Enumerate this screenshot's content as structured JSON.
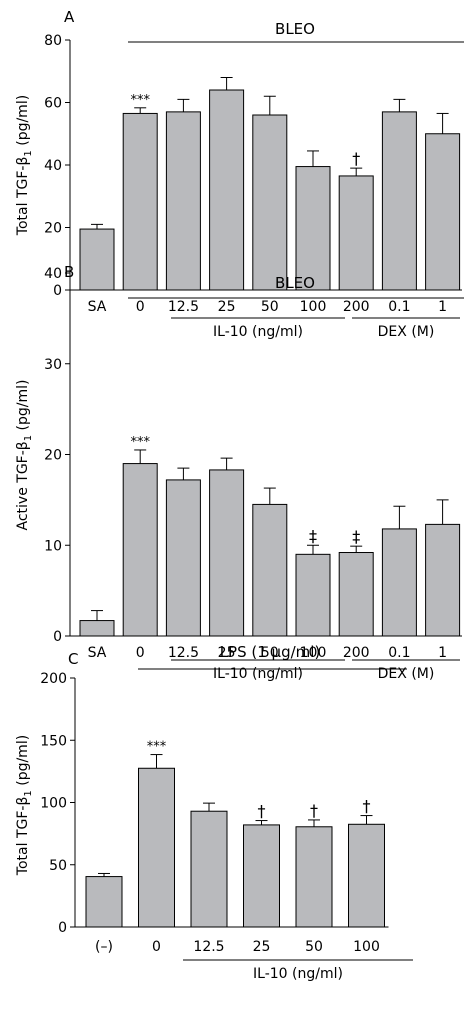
{
  "colors": {
    "bar": "#b9babd",
    "stroke": "#000000",
    "background": "#ffffff"
  },
  "chart_data": [
    {
      "type": "bar",
      "panel_label": "A",
      "ylabel": "Total TGF-β1 (pg/ml)",
      "ylim": [
        0,
        80
      ],
      "yticks": [
        "0",
        "20",
        "40",
        "60",
        "80"
      ],
      "treatment": "BLEO",
      "categories": [
        "SA",
        "0",
        "12.5",
        "25",
        "50",
        "100",
        "200",
        "0.1",
        "1"
      ],
      "values": [
        19.5,
        56.5,
        57,
        64,
        56,
        39.5,
        36.5,
        57,
        50
      ],
      "errors": [
        1.5,
        1.8,
        4,
        4,
        6,
        5,
        2.5,
        4,
        6.5
      ],
      "annotations": [
        "",
        "***",
        "",
        "",
        "",
        "",
        "†",
        "",
        ""
      ],
      "groups": [
        {
          "label": "IL-10 (ng/ml)",
          "from": 2,
          "to": 6
        },
        {
          "label": "DEX (M)",
          "from": 7,
          "to": 8
        }
      ]
    },
    {
      "type": "bar",
      "panel_label": "B",
      "ylabel": "Active TGF-β1 (pg/ml)",
      "ylim": [
        0,
        40
      ],
      "yticks": [
        "0",
        "10",
        "20",
        "30",
        "40"
      ],
      "treatment": "BLEO",
      "categories": [
        "SA",
        "0",
        "12.5",
        "25",
        "50",
        "100",
        "200",
        "0.1",
        "1"
      ],
      "values": [
        1.7,
        19,
        17.2,
        18.3,
        14.5,
        9,
        9.2,
        11.8,
        12.3
      ],
      "errors": [
        1.1,
        1.5,
        1.3,
        1.3,
        1.8,
        1,
        0.7,
        2.5,
        2.7
      ],
      "annotations": [
        "",
        "***",
        "",
        "",
        "",
        "‡",
        "‡",
        "",
        ""
      ],
      "groups": [
        {
          "label": "IL-10 (ng/ml)",
          "from": 2,
          "to": 6
        },
        {
          "label": "DEX (M)",
          "from": 7,
          "to": 8
        }
      ]
    },
    {
      "type": "bar",
      "panel_label": "C",
      "ylabel": "Total TGF-β1 (pg/ml)",
      "ylim": [
        0,
        200
      ],
      "yticks": [
        "0",
        "50",
        "100",
        "150",
        "200"
      ],
      "treatment": "LPS (1 µg/ml)",
      "categories": [
        "(–)",
        "0",
        "12.5",
        "25",
        "50",
        "100"
      ],
      "values": [
        40.5,
        127.5,
        93,
        82,
        80.5,
        82.5
      ],
      "errors": [
        2.5,
        11,
        6.5,
        3.5,
        5.5,
        7
      ],
      "annotations": [
        "",
        "***",
        "",
        "†",
        "†",
        "†"
      ],
      "groups": [
        {
          "label": "IL-10 (ng/ml)",
          "from": 2,
          "to": 5
        }
      ]
    }
  ]
}
